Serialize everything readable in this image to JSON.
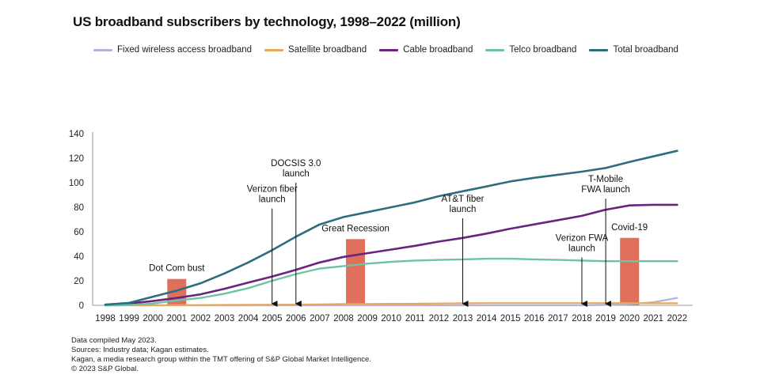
{
  "chart_data": {
    "type": "line",
    "title": "US broadband subscribers by technology, 1998–2022 (million)",
    "xlabel": "",
    "ylabel": "",
    "ylim": [
      0,
      140
    ],
    "yticks": [
      0,
      20,
      40,
      60,
      80,
      100,
      120,
      140
    ],
    "x": [
      "1998",
      "1999",
      "2000",
      "2001",
      "2002",
      "2003",
      "2004",
      "2005",
      "2006",
      "2007",
      "2008",
      "2009",
      "2010",
      "2011",
      "2012",
      "2013",
      "2014",
      "2015",
      "2016",
      "2017",
      "2018",
      "2019",
      "2020",
      "2021",
      "2022"
    ],
    "series": [
      {
        "name": "Fixed wireless access broadband",
        "color": "#b3b3d9",
        "values": [
          0,
          0,
          0,
          0,
          0,
          0,
          0,
          0,
          0,
          0,
          0,
          0,
          0,
          0,
          0,
          0,
          0,
          0,
          0,
          0,
          0,
          0.3,
          1.0,
          2.5,
          6.0
        ]
      },
      {
        "name": "Satellite broadband",
        "color": "#e8a85a",
        "values": [
          0,
          0,
          0.05,
          0.1,
          0.2,
          0.3,
          0.4,
          0.5,
          0.6,
          0.8,
          1.0,
          1.1,
          1.2,
          1.3,
          1.5,
          1.7,
          1.8,
          1.8,
          1.8,
          1.8,
          1.8,
          1.8,
          1.8,
          1.7,
          1.7
        ]
      },
      {
        "name": "Cable broadband",
        "color": "#6b2380",
        "values": [
          0.5,
          1.5,
          3.5,
          6,
          9,
          13.5,
          18.5,
          23.5,
          29,
          35,
          39.5,
          42.5,
          45.5,
          48.5,
          52,
          55,
          58.5,
          62.5,
          66,
          69.5,
          73,
          78,
          81.5,
          82,
          82
        ]
      },
      {
        "name": "Telco broadband",
        "color": "#6fc3a4",
        "values": [
          0,
          0.2,
          1.5,
          4,
          6,
          9.5,
          14,
          20,
          25.5,
          30,
          32,
          34,
          35.5,
          36.5,
          37,
          37.5,
          38,
          38,
          37.5,
          37,
          36.5,
          36,
          36,
          36,
          36
        ]
      },
      {
        "name": "Total broadband",
        "color": "#2e6d80",
        "values": [
          0.5,
          2,
          7,
          12,
          18,
          26,
          35,
          45,
          56,
          66,
          72,
          76,
          80,
          84,
          89,
          93,
          97,
          101,
          104,
          106.5,
          109,
          112,
          117,
          121.5,
          126
        ]
      }
    ],
    "bars": [
      {
        "label": "Dot Com bust",
        "x": "2001",
        "value": 21.5,
        "color": "#e0705c"
      },
      {
        "label": "Great Recession",
        "x": "2008.5",
        "value": 54,
        "color": "#e0705c"
      },
      {
        "label": "Covid-19",
        "x": "2020",
        "value": 55,
        "color": "#e0705c"
      }
    ],
    "annotations": [
      {
        "lines": [
          "Verizon fiber",
          "launch"
        ],
        "x": 2005,
        "top_value": 79
      },
      {
        "lines": [
          "DOCSIS 3.0",
          "launch"
        ],
        "x": 2006,
        "top_value": 100
      },
      {
        "lines": [
          "AT&T fiber",
          "launch"
        ],
        "x": 2013,
        "top_value": 71
      },
      {
        "lines": [
          "Verizon FWA",
          "launch"
        ],
        "x": 2018,
        "top_value": 39
      },
      {
        "lines": [
          "T-Mobile",
          "FWA launch"
        ],
        "x": 2019,
        "top_value": 87
      }
    ]
  },
  "notes": [
    "Data compiled May 2023.",
    "Sources: Industry data; Kagan estimates.",
    "Kagan, a media research group within the TMT offering of S&P Global Market Intelligence.",
    "© 2023 S&P Global."
  ]
}
